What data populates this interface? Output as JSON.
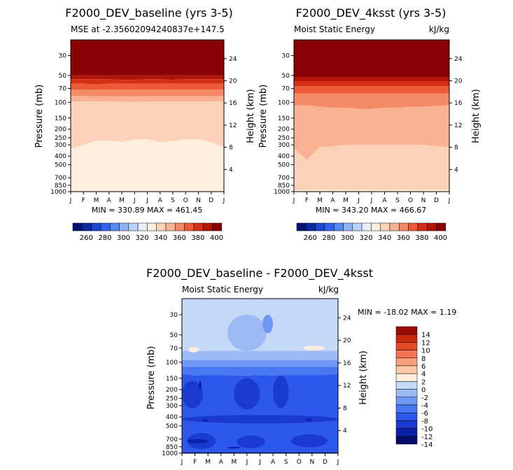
{
  "colors": {
    "mse_scale": [
      "#04116e",
      "#0c2aa2",
      "#1a47cf",
      "#2f63e8",
      "#5288f0",
      "#8cb2f4",
      "#bcd2f8",
      "#e8eff9",
      "#feeedd",
      "#fbd2b8",
      "#f9b293",
      "#f48a66",
      "#ec5a37",
      "#d42f14",
      "#b01507",
      "#8a0304"
    ],
    "diff_scale": [
      "#050c6a",
      "#0a20a8",
      "#1a3ad1",
      "#2c58ec",
      "#4a78f2",
      "#6f98f4",
      "#9cbbf6",
      "#c6d8f8",
      "#fdecdc",
      "#fbc8a8",
      "#f7a07c",
      "#f27452",
      "#e64a26",
      "#cc2a0e",
      "#9a0c04"
    ]
  },
  "panels": [
    {
      "title": "F2000_DEV_baseline (yrs 3-5)",
      "left_label": "MSE at -2.35602094240837e+147.5",
      "right_label": "",
      "stats": "MIN = 330.89  MAX = 461.45",
      "y_left_label": "Pressure (mb)",
      "y_right_label": "Height (km)"
    },
    {
      "title": "F2000_DEV_4ksst (yrs 3-5)",
      "left_label": "Moist Static Energy",
      "right_label": "kJ/kg",
      "stats": "MIN = 343.20  MAX = 466.67",
      "y_left_label": "Pressure (mb)",
      "y_right_label": "Height (km)"
    },
    {
      "title": "F2000_DEV_baseline - F2000_DEV_4ksst",
      "left_label": "Moist Static Energy",
      "right_label": "kJ/kg",
      "stats": "MIN = -18.02  MAX =   1.19",
      "y_left_label": "Pressure (mb)",
      "y_right_label": "Height (km)"
    }
  ],
  "chart_data": [
    {
      "type": "heatmap",
      "title": "F2000_DEV_baseline (yrs 3-5)",
      "subtitle": "MSE at -2.35602094240837e+147.5",
      "x": [
        "J",
        "F",
        "M",
        "A",
        "M",
        "J",
        "J",
        "A",
        "S",
        "O",
        "N",
        "D",
        "J"
      ],
      "y_pressure_ticks": [
        30,
        50,
        70,
        100,
        150,
        200,
        250,
        300,
        400,
        500,
        700,
        850,
        1000
      ],
      "y_height_ticks": [
        4,
        8,
        12,
        16,
        20,
        24
      ],
      "contour_levels": [
        260,
        270,
        280,
        290,
        300,
        310,
        320,
        330,
        340,
        350,
        360,
        370,
        380,
        390,
        400
      ],
      "colorbar_labels": [
        "260",
        "280",
        "300",
        "320",
        "340",
        "360",
        "380",
        "400"
      ],
      "min": 330.89,
      "max": 461.45,
      "layers": [
        {
          "level": 400,
          "top_hPa": 30,
          "bottom_hPa": [
            50,
            50,
            50,
            50,
            50,
            50,
            50,
            50,
            50,
            50,
            50,
            50,
            50
          ]
        },
        {
          "level": 390,
          "bottom_hPa": [
            55,
            55,
            55,
            55,
            56,
            56,
            55,
            55,
            56,
            55,
            55,
            55,
            55
          ]
        },
        {
          "level": 380,
          "bottom_hPa": [
            62,
            62,
            63,
            62,
            62,
            62,
            62,
            62,
            62,
            62,
            62,
            62,
            62
          ]
        },
        {
          "level": 370,
          "bottom_hPa": [
            72,
            72,
            72,
            72,
            72,
            72,
            72,
            72,
            72,
            72,
            72,
            72,
            72
          ]
        },
        {
          "level": 360,
          "bottom_hPa": [
            85,
            85,
            86,
            86,
            86,
            86,
            86,
            86,
            86,
            86,
            86,
            86,
            85
          ]
        },
        {
          "level": 350,
          "bottom_hPa": [
            98,
            98,
            98,
            98,
            99,
            99,
            98,
            98,
            98,
            98,
            98,
            98,
            98
          ]
        },
        {
          "level": 340,
          "bottom_hPa": [
            330,
            300,
            270,
            270,
            280,
            260,
            260,
            280,
            270,
            260,
            260,
            280,
            320
          ]
        },
        {
          "level": 330,
          "bottom_hPa": [
            990,
            990,
            990,
            990,
            990,
            990,
            990,
            990,
            990,
            990,
            990,
            990,
            990
          ]
        },
        {
          "level": 340,
          "bottom_hPa": [
            1000,
            1000,
            1000,
            1000,
            1000,
            1000,
            1000,
            1000,
            1000,
            1000,
            1000,
            1000,
            1000
          ]
        }
      ]
    },
    {
      "type": "heatmap",
      "title": "F2000_DEV_4ksst (yrs 3-5)",
      "subtitle": "Moist Static Energy",
      "units": "kJ/kg",
      "x": [
        "J",
        "F",
        "M",
        "A",
        "M",
        "J",
        "J",
        "A",
        "S",
        "O",
        "N",
        "D",
        "J"
      ],
      "y_pressure_ticks": [
        30,
        50,
        70,
        100,
        150,
        200,
        250,
        300,
        400,
        500,
        700,
        850,
        1000
      ],
      "y_height_ticks": [
        4,
        8,
        12,
        16,
        20,
        24
      ],
      "contour_levels": [
        260,
        270,
        280,
        290,
        300,
        310,
        320,
        330,
        340,
        350,
        360,
        370,
        380,
        390,
        400
      ],
      "colorbar_labels": [
        "260",
        "280",
        "300",
        "320",
        "340",
        "360",
        "380",
        "400"
      ],
      "min": 343.2,
      "max": 466.67,
      "layers": [
        {
          "level": 400,
          "top_hPa": 30,
          "bottom_hPa": [
            52,
            52,
            52,
            52,
            52,
            52,
            52,
            52,
            52,
            52,
            52,
            52,
            52
          ]
        },
        {
          "level": 390,
          "bottom_hPa": [
            58,
            58,
            58,
            58,
            58,
            58,
            58,
            58,
            58,
            58,
            58,
            58,
            58
          ]
        },
        {
          "level": 380,
          "bottom_hPa": [
            66,
            66,
            66,
            66,
            66,
            66,
            66,
            66,
            66,
            66,
            66,
            66,
            66
          ]
        },
        {
          "level": 370,
          "bottom_hPa": [
            80,
            80,
            80,
            80,
            80,
            80,
            80,
            80,
            80,
            80,
            80,
            80,
            80
          ]
        },
        {
          "level": 360,
          "bottom_hPa": [
            108,
            108,
            112,
            115,
            115,
            118,
            118,
            115,
            115,
            112,
            112,
            110,
            108
          ]
        },
        {
          "level": 350,
          "bottom_hPa": [
            330,
            440,
            320,
            310,
            300,
            300,
            300,
            300,
            300,
            300,
            300,
            310,
            320
          ]
        },
        {
          "level": 340,
          "bottom_hPa": [
            960,
            960,
            960,
            960,
            960,
            960,
            960,
            960,
            960,
            960,
            960,
            960,
            960
          ]
        },
        {
          "level": 330,
          "bottom_hPa": [
            990,
            990,
            990,
            990,
            990,
            990,
            990,
            990,
            990,
            990,
            990,
            990,
            990
          ]
        },
        {
          "level": 340,
          "bottom_hPa": [
            1000,
            1000,
            1000,
            1000,
            1000,
            1000,
            1000,
            1000,
            1000,
            1000,
            1000,
            1000,
            1000
          ]
        }
      ]
    },
    {
      "type": "heatmap",
      "title": "F2000_DEV_baseline - F2000_DEV_4ksst",
      "subtitle": "Moist Static Energy",
      "units": "kJ/kg",
      "x": [
        "J",
        "F",
        "M",
        "A",
        "M",
        "J",
        "J",
        "A",
        "S",
        "O",
        "N",
        "D",
        "J"
      ],
      "y_pressure_ticks": [
        30,
        50,
        70,
        100,
        150,
        200,
        250,
        300,
        400,
        500,
        700,
        850,
        1000
      ],
      "y_height_ticks": [
        4,
        8,
        12,
        16,
        20,
        24
      ],
      "contour_levels": [
        -14,
        -12,
        -10,
        -8,
        -6,
        -4,
        -2,
        0,
        2,
        4,
        6,
        8,
        10,
        12,
        14
      ],
      "colorbar_labels": [
        "14",
        "12",
        "10",
        "8",
        "6",
        "4",
        "2",
        "0",
        "-2",
        "-4",
        "-6",
        "-8",
        "-10",
        "-12",
        "-14"
      ],
      "min": -18.02,
      "max": 1.19,
      "layers": [
        {
          "level": -2,
          "top_hPa": 30,
          "bottom_hPa": [
            75,
            75,
            75,
            75,
            75,
            75,
            75,
            75,
            75,
            75,
            75,
            75,
            75
          ]
        },
        {
          "level": -4,
          "bottom_hPa": [
            95,
            95,
            95,
            95,
            95,
            95,
            95,
            95,
            95,
            95,
            95,
            95,
            95
          ]
        },
        {
          "level": -6,
          "bottom_hPa": [
            112,
            112,
            112,
            112,
            112,
            112,
            112,
            112,
            112,
            112,
            112,
            112,
            112
          ]
        },
        {
          "level": -8,
          "bottom_hPa": [
            135,
            140,
            138,
            138,
            140,
            140,
            138,
            140,
            138,
            138,
            138,
            138,
            135
          ]
        },
        {
          "level": -10,
          "bottom_hPa": [
            960,
            960,
            960,
            960,
            960,
            960,
            960,
            960,
            960,
            960,
            960,
            960,
            960
          ]
        },
        {
          "level": -12,
          "bottom_hPa": [
            1000,
            1000,
            1000,
            1000,
            1000,
            1000,
            1000,
            1000,
            1000,
            1000,
            1000,
            1000,
            1000
          ]
        }
      ],
      "patches": [
        {
          "level": -4,
          "x_range": [
            3.5,
            6.5
          ],
          "top_hPa": 30,
          "bottom_hPa": 75
        },
        {
          "level": -6,
          "x_range": [
            6.2,
            7.0
          ],
          "top_hPa": 30,
          "bottom_hPa": 48
        },
        {
          "level": 0,
          "x_range": [
            0.5,
            1.3
          ],
          "top_hPa": 68,
          "bottom_hPa": 78
        },
        {
          "level": 0,
          "x_range": [
            9.3,
            11.0
          ],
          "top_hPa": 66,
          "bottom_hPa": 74
        },
        {
          "level": -12,
          "x_range": [
            0.0,
            1.6
          ],
          "top_hPa": 160,
          "bottom_hPa": 320
        },
        {
          "level": -12,
          "x_range": [
            4.0,
            6.0
          ],
          "top_hPa": 150,
          "bottom_hPa": 330
        },
        {
          "level": -12,
          "x_range": [
            7.0,
            8.2
          ],
          "top_hPa": 140,
          "bottom_hPa": 320
        },
        {
          "level": -12,
          "x_range": [
            0.0,
            12.0
          ],
          "top_hPa": 380,
          "bottom_hPa": 470
        },
        {
          "level": -12,
          "x_range": [
            0.4,
            2.6
          ],
          "top_hPa": 600,
          "bottom_hPa": 900
        },
        {
          "level": -12,
          "x_range": [
            4.2,
            6.4
          ],
          "top_hPa": 640,
          "bottom_hPa": 880
        },
        {
          "level": -12,
          "x_range": [
            8.4,
            11.2
          ],
          "top_hPa": 620,
          "bottom_hPa": 860
        },
        {
          "level": -14,
          "x_range": [
            1.6,
            2.0
          ],
          "top_hPa": 420,
          "bottom_hPa": 450
        },
        {
          "level": -14,
          "x_range": [
            9.5,
            10.0
          ],
          "top_hPa": 415,
          "bottom_hPa": 440
        },
        {
          "level": -14,
          "x_range": [
            1.3,
            1.5
          ],
          "top_hPa": 160,
          "bottom_hPa": 200
        },
        {
          "level": -14,
          "x_range": [
            0.4,
            2.0
          ],
          "top_hPa": 700,
          "bottom_hPa": 780
        },
        {
          "level": -14,
          "x_range": [
            3.5,
            4.5
          ],
          "top_hPa": 850,
          "bottom_hPa": 890
        }
      ]
    }
  ]
}
